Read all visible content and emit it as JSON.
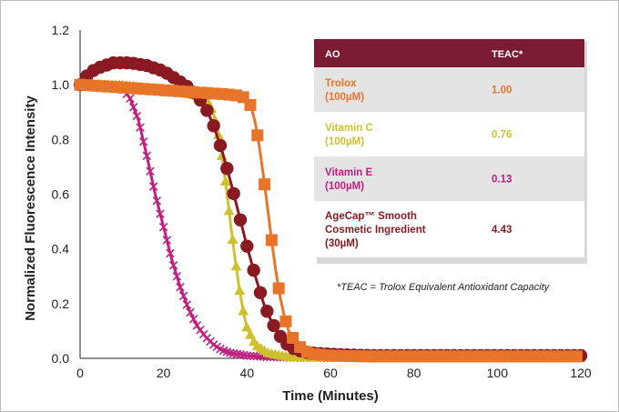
{
  "chart_data": {
    "type": "line",
    "title": "",
    "xlabel": "Time (Minutes)",
    "ylabel": "Normalized Fluorescence Intensity",
    "xlim": [
      0,
      120
    ],
    "ylim": [
      0,
      1.2
    ],
    "xticks": [
      "0",
      "20",
      "40",
      "60",
      "80",
      "100",
      "120"
    ],
    "yticks": [
      "0.0",
      "0.2",
      "0.4",
      "0.6",
      "0.8",
      "1.0",
      "1.2"
    ],
    "grid": false,
    "series": [
      {
        "color": "#c01f7f",
        "marker": "x",
        "x": [
          0,
          5,
          10,
          12,
          14,
          16,
          18,
          20,
          22,
          24,
          26,
          28,
          30,
          32,
          34,
          36,
          40,
          45,
          50,
          60,
          80,
          100,
          120
        ],
        "y": [
          1.0,
          1.0,
          0.99,
          0.95,
          0.87,
          0.74,
          0.6,
          0.48,
          0.36,
          0.26,
          0.18,
          0.12,
          0.08,
          0.05,
          0.03,
          0.02,
          0.01,
          0.005,
          0.003,
          0.002,
          0.002,
          0.002,
          0.002
        ]
      },
      {
        "color": "#cfc02f",
        "marker": "triangle",
        "x": [
          0,
          10,
          20,
          25,
          28,
          30,
          31,
          32,
          33,
          34,
          35,
          36,
          37,
          38,
          39,
          40,
          42,
          45,
          50,
          60,
          80,
          100,
          120
        ],
        "y": [
          1.0,
          1.0,
          0.98,
          0.97,
          0.96,
          0.95,
          0.93,
          0.89,
          0.83,
          0.74,
          0.63,
          0.5,
          0.38,
          0.27,
          0.18,
          0.11,
          0.05,
          0.02,
          0.005,
          0.003,
          0.003,
          0.003,
          0.003
        ]
      },
      {
        "color": "#8a1a22",
        "marker": "circle",
        "x": [
          0,
          2,
          4,
          6,
          8,
          10,
          12,
          14,
          16,
          18,
          20,
          22,
          24,
          26,
          28,
          30,
          32,
          34,
          36,
          38,
          40,
          42,
          44,
          46,
          48,
          50,
          52,
          55,
          60,
          65,
          70,
          80,
          90,
          100,
          110,
          120
        ],
        "y": [
          1.0,
          1.04,
          1.06,
          1.07,
          1.08,
          1.08,
          1.08,
          1.075,
          1.07,
          1.06,
          1.05,
          1.03,
          1.01,
          0.99,
          0.96,
          0.92,
          0.85,
          0.76,
          0.65,
          0.53,
          0.41,
          0.3,
          0.2,
          0.13,
          0.08,
          0.045,
          0.03,
          0.02,
          0.015,
          0.012,
          0.01,
          0.01,
          0.01,
          0.01,
          0.01,
          0.01
        ]
      },
      {
        "color": "#e8742a",
        "marker": "square",
        "x": [
          0,
          5,
          10,
          15,
          20,
          25,
          30,
          35,
          38,
          40,
          41,
          42,
          43,
          44,
          45,
          46,
          47,
          48,
          49,
          50,
          52,
          54,
          56,
          60,
          65,
          70,
          80,
          90,
          100,
          110,
          120
        ],
        "y": [
          1.0,
          0.995,
          0.99,
          0.985,
          0.98,
          0.975,
          0.97,
          0.965,
          0.96,
          0.95,
          0.92,
          0.86,
          0.77,
          0.66,
          0.54,
          0.42,
          0.31,
          0.22,
          0.15,
          0.1,
          0.05,
          0.025,
          0.015,
          0.01,
          0.008,
          0.007,
          0.007,
          0.007,
          0.007,
          0.007,
          0.007
        ]
      }
    ]
  },
  "table": {
    "header": [
      "AO",
      "TEAC*"
    ],
    "rows": [
      {
        "name_lines": [
          "Trolox",
          "(100µM)"
        ],
        "teac": "1.00",
        "color": "#e8742a"
      },
      {
        "name_lines": [
          "Vitamin C",
          "(100µM)"
        ],
        "teac": "0.76",
        "color": "#cfc02f"
      },
      {
        "name_lines": [
          "Vitamin E",
          "(100µM)"
        ],
        "teac": "0.13",
        "color": "#c01f7f"
      },
      {
        "name_lines": [
          "AgeCap™ Smooth",
          "Cosmetic Ingredient",
          "(30µM)"
        ],
        "teac": "4.43",
        "color": "#8a1a22"
      }
    ],
    "header_color": "#7a1a33"
  },
  "footnote": "*TEAC = Trolox Equivalent Antioxidant Capacity"
}
